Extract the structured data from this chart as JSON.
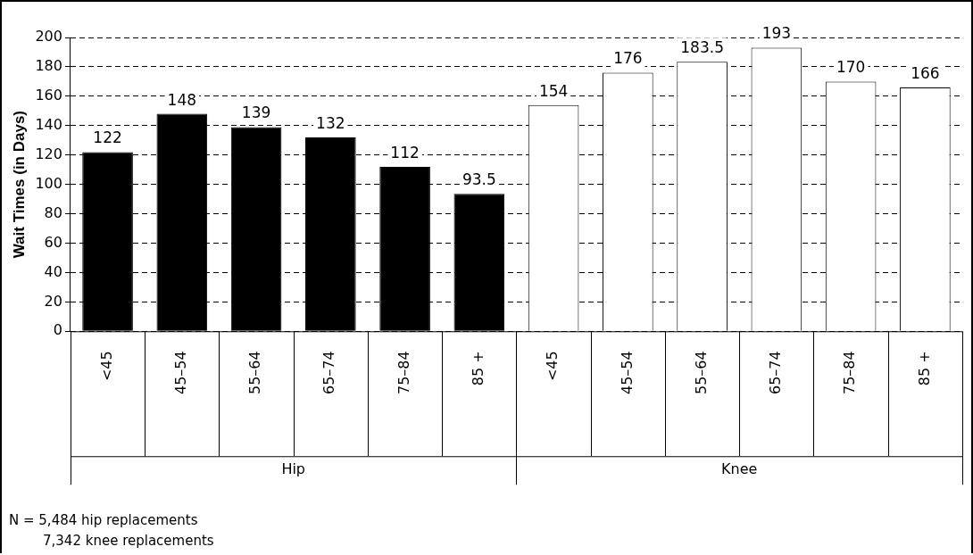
{
  "chart_data": {
    "type": "bar",
    "ylabel": "Wait Times (in Days)",
    "categories": [
      "<45",
      "45–54",
      "55–64",
      "65–74",
      "75–84",
      "85 +",
      "<45",
      "45–54",
      "55–64",
      "65–74",
      "75–84",
      "85 +"
    ],
    "series": [
      {
        "color": "#000000",
        "values": [
          122,
          148,
          139,
          132,
          112,
          93.5,
          null,
          null,
          null,
          null,
          null,
          null
        ]
      },
      {
        "color": "#ffffff",
        "values": [
          null,
          null,
          null,
          null,
          null,
          null,
          154,
          176,
          183.5,
          193,
          170,
          166
        ]
      }
    ],
    "ylim": [
      0,
      200
    ],
    "yticks": [
      0,
      20,
      40,
      60,
      80,
      100,
      120,
      140,
      160,
      180,
      200
    ],
    "grid": "y",
    "legend": false,
    "data_labels": true,
    "annotations": [
      "Hip",
      "Knee",
      "N = 5,484 hip replacements",
      "7,342 knee replacements"
    ]
  }
}
